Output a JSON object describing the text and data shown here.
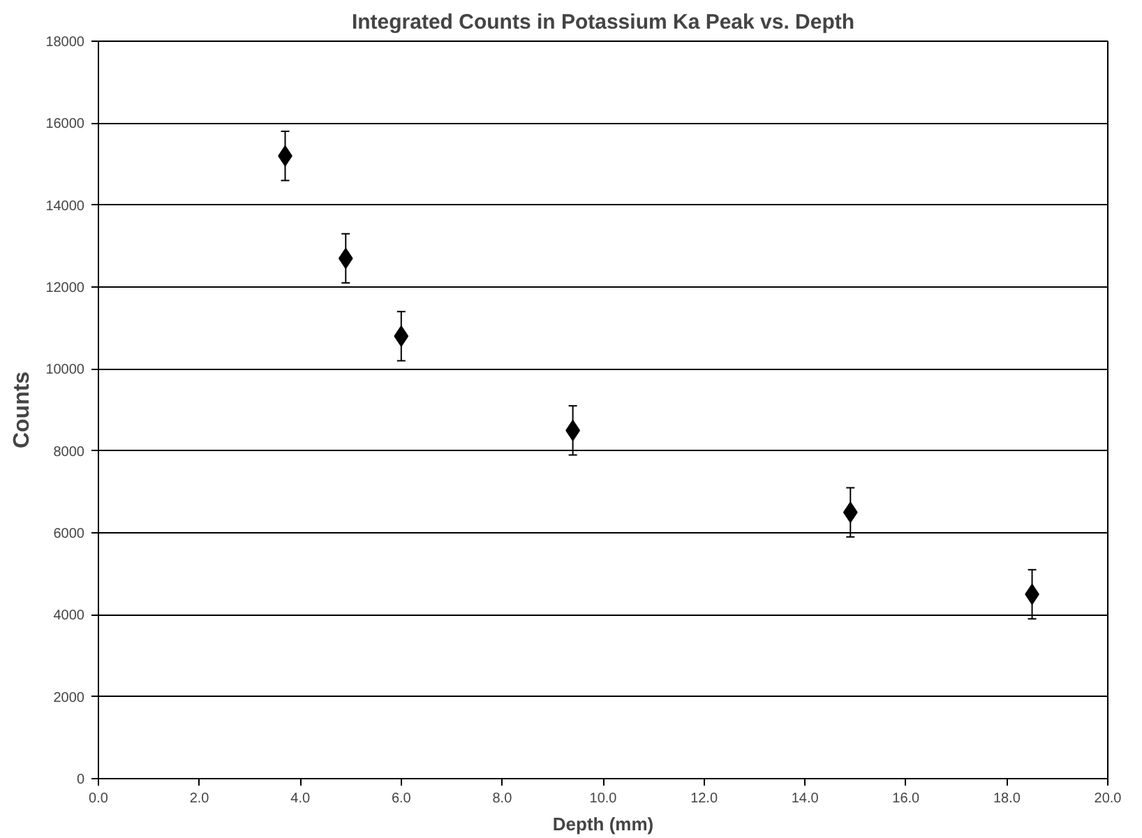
{
  "chart_data": {
    "type": "scatter",
    "title": "Integrated Counts in Potassium Ka Peak vs. Depth",
    "xlabel": "Depth (mm)",
    "ylabel": "Counts",
    "x": [
      3.7,
      4.9,
      6.0,
      9.4,
      14.9,
      18.5
    ],
    "series": [
      {
        "color": "#000000",
        "values": [
          15200,
          12700,
          10800,
          8500,
          6500,
          4500
        ],
        "errors": [
          600,
          600,
          600,
          600,
          600,
          600
        ]
      }
    ],
    "xlim": [
      0,
      20
    ],
    "ylim": [
      0,
      18000
    ],
    "xticks": [
      {
        "value": 0,
        "label": "0.0"
      },
      {
        "value": 2,
        "label": "2.0"
      },
      {
        "value": 4,
        "label": "4.0"
      },
      {
        "value": 6,
        "label": "6.0"
      },
      {
        "value": 8,
        "label": "8.0"
      },
      {
        "value": 10,
        "label": "10.0"
      },
      {
        "value": 12,
        "label": "12.0"
      },
      {
        "value": 14,
        "label": "14.0"
      },
      {
        "value": 16,
        "label": "16.0"
      },
      {
        "value": 18,
        "label": "18.0"
      },
      {
        "value": 20,
        "label": "20.0"
      }
    ],
    "yticks": [
      0,
      2000,
      4000,
      6000,
      8000,
      10000,
      12000,
      14000,
      16000,
      18000
    ],
    "grid": "y",
    "marker": "diamond"
  }
}
